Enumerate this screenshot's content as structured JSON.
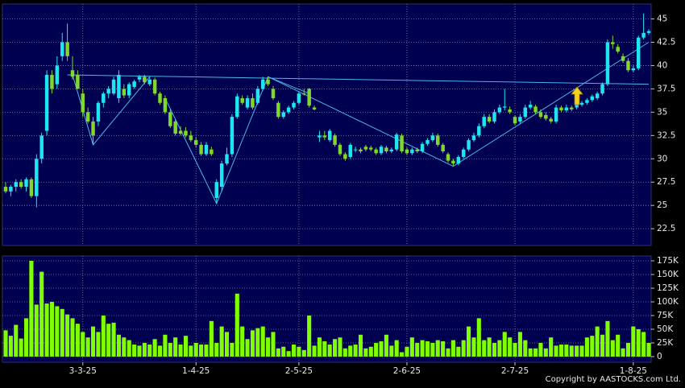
{
  "chart_data": [
    {
      "type": "candlestick",
      "up_color": "#1ee6f0",
      "down_color": "#80d82a",
      "ylim": [
        20.7,
        46.6
      ],
      "yticks": [
        22.5,
        25,
        27.5,
        30,
        32.5,
        35,
        37.5,
        40,
        42.5,
        45
      ],
      "grid": true,
      "trendline_color": "#48b8e8",
      "trendlines": [
        {
          "x": [
            12,
            125
          ],
          "y": [
            39,
            38
          ]
        },
        {
          "x": [
            13,
            17,
            28
          ],
          "y": [
            39,
            31.5,
            38.8
          ]
        },
        {
          "x": [
            31,
            41,
            51,
            59
          ],
          "y": [
            36.5,
            25.2,
            38.8,
            37
          ]
        },
        {
          "x": [
            51,
            87,
            125
          ],
          "y": [
            38.8,
            29.2,
            42.5
          ]
        }
      ],
      "ohlc": [
        [
          27,
          27.5,
          26.3,
          26.5
        ],
        [
          26.5,
          27.2,
          26,
          27
        ],
        [
          27,
          27.8,
          26.5,
          27.5
        ],
        [
          27.5,
          27.8,
          26.8,
          27
        ],
        [
          27,
          28,
          26.5,
          27.8
        ],
        [
          27.8,
          28,
          25.8,
          26
        ],
        [
          26,
          30.5,
          24.8,
          30
        ],
        [
          30,
          32.8,
          29.5,
          32.5
        ],
        [
          33,
          39.5,
          32.5,
          39
        ],
        [
          39,
          39.5,
          37,
          37.5
        ],
        [
          38,
          41,
          37.5,
          40
        ],
        [
          41,
          43.5,
          40.5,
          42.5
        ],
        [
          42.5,
          44.5,
          40.5,
          41
        ],
        [
          39.5,
          41,
          38.5,
          38.8
        ],
        [
          39,
          39.5,
          37.5,
          37.5
        ],
        [
          37,
          37.5,
          34.5,
          35
        ],
        [
          35,
          35.5,
          33.8,
          34
        ],
        [
          34,
          34.5,
          31.5,
          32.5
        ],
        [
          34,
          36.2,
          33.5,
          36
        ],
        [
          36,
          37.2,
          35.5,
          37
        ],
        [
          37,
          37.8,
          36.5,
          37.5
        ],
        [
          37,
          38.8,
          36.8,
          38.5
        ],
        [
          36.5,
          39.5,
          36,
          39
        ],
        [
          37.5,
          38,
          36.5,
          36.8
        ],
        [
          36.8,
          38.2,
          36.5,
          38
        ],
        [
          37.7,
          38.5,
          37.5,
          38.3
        ],
        [
          38.5,
          39,
          38.2,
          38.8
        ],
        [
          38.8,
          39,
          38,
          38.2
        ],
        [
          38,
          38.8,
          37.8,
          38.5
        ],
        [
          38.5,
          38.7,
          36.8,
          37
        ],
        [
          37,
          37.2,
          35.8,
          36
        ],
        [
          36.5,
          36.8,
          34.8,
          35
        ],
        [
          35,
          35.3,
          33.3,
          33.5
        ],
        [
          34,
          34.2,
          32.5,
          32.7
        ],
        [
          33,
          33.5,
          32.5,
          32.7
        ],
        [
          33,
          33.4,
          32.3,
          32.5
        ],
        [
          32.5,
          33,
          31.8,
          32
        ],
        [
          32,
          32.3,
          31.2,
          31.5
        ],
        [
          31.5,
          31.8,
          30.3,
          30.5
        ],
        [
          30.5,
          31.8,
          30.3,
          31.5
        ],
        [
          31,
          31.3,
          30.3,
          30.5
        ],
        [
          25.8,
          27.8,
          25.2,
          27.5
        ],
        [
          27,
          29.8,
          26.5,
          29.5
        ],
        [
          29.5,
          31.2,
          29.3,
          30.5
        ],
        [
          30.5,
          34.8,
          30.2,
          34.5
        ],
        [
          34.5,
          37,
          34.3,
          36.7
        ],
        [
          36.5,
          36.8,
          35.8,
          36
        ],
        [
          35.5,
          36.8,
          35.3,
          36.5
        ],
        [
          36.5,
          37,
          35.3,
          35.5
        ],
        [
          36,
          37.8,
          35.8,
          37.5
        ],
        [
          37.5,
          38.8,
          37.3,
          38.5
        ],
        [
          38.5,
          38.8,
          37.8,
          38
        ],
        [
          37.5,
          37.8,
          36.3,
          36.5
        ],
        [
          36,
          36.2,
          34.3,
          34.5
        ],
        [
          34.5,
          35.2,
          34.3,
          35
        ],
        [
          35,
          35.7,
          34.8,
          35.5
        ],
        [
          35.5,
          36.2,
          35.3,
          36
        ],
        [
          36,
          37.2,
          35.8,
          37
        ],
        [
          37,
          37.5,
          36.8,
          36.9
        ],
        [
          37.5,
          37.6,
          35.5,
          35.7
        ],
        [
          35.5,
          35.7,
          35.2,
          35.3
        ],
        [
          32.3,
          33,
          31.8,
          32.5
        ],
        [
          32.5,
          33,
          32,
          32.3
        ],
        [
          32,
          33.2,
          31.8,
          33
        ],
        [
          32.5,
          32.7,
          31.3,
          31.5
        ],
        [
          31.5,
          31.7,
          30.3,
          30.5
        ],
        [
          30.5,
          30.7,
          29.8,
          30
        ],
        [
          30.2,
          31.7,
          30,
          31.5
        ],
        [
          31,
          31.3,
          30.7,
          31
        ],
        [
          31,
          31.2,
          30.6,
          30.8
        ],
        [
          31.3,
          31.5,
          30.8,
          31
        ],
        [
          31.2,
          31.4,
          30.8,
          31
        ],
        [
          31,
          31.2,
          30.4,
          30.6
        ],
        [
          30.6,
          31.5,
          30.4,
          31.3
        ],
        [
          31.2,
          31.4,
          30.6,
          30.8
        ],
        [
          30.8,
          31.2,
          30.6,
          31
        ],
        [
          31,
          32.8,
          30.8,
          32.6
        ],
        [
          32.5,
          32.7,
          30.6,
          30.8
        ],
        [
          31,
          31.2,
          30.4,
          30.6
        ],
        [
          30.6,
          31.2,
          30.4,
          31
        ],
        [
          31,
          31.2,
          30.6,
          30.8
        ],
        [
          30.8,
          31.8,
          30.6,
          31.6
        ],
        [
          31.6,
          32.2,
          31.4,
          32
        ],
        [
          32,
          32.8,
          31.8,
          32.5
        ],
        [
          32.5,
          32.7,
          31.3,
          31.5
        ],
        [
          31.5,
          31.7,
          30.6,
          30.8
        ],
        [
          30.5,
          30.7,
          29.6,
          29.8
        ],
        [
          29.8,
          30,
          29.2,
          29.5
        ],
        [
          29.5,
          30.4,
          29.3,
          30.2
        ],
        [
          30.2,
          31.2,
          30,
          31
        ],
        [
          31,
          32.2,
          30.8,
          32
        ],
        [
          32,
          32.8,
          31.8,
          32.5
        ],
        [
          32.5,
          33.8,
          32.3,
          33.5
        ],
        [
          33.5,
          34.8,
          33.3,
          34.5
        ],
        [
          34.5,
          34.8,
          33.8,
          34
        ],
        [
          34,
          35.3,
          33.8,
          35
        ],
        [
          35,
          35.8,
          34.8,
          35.5
        ],
        [
          35.5,
          37.5,
          35.2,
          35.6
        ],
        [
          35.3,
          35.6,
          34.8,
          35
        ],
        [
          34.5,
          34.7,
          33.6,
          33.8
        ],
        [
          34,
          34.8,
          33.8,
          34.5
        ],
        [
          34.5,
          35.8,
          34.3,
          35.5
        ],
        [
          35.5,
          36.2,
          35.3,
          35.8
        ],
        [
          35.6,
          35.8,
          34.8,
          35
        ],
        [
          35,
          35.3,
          34.3,
          34.5
        ],
        [
          34.7,
          35,
          34.1,
          34.3
        ],
        [
          34.3,
          34.5,
          33.8,
          34
        ],
        [
          34,
          35.8,
          33.8,
          35.5
        ],
        [
          35.5,
          35.7,
          35,
          35.2
        ],
        [
          35.2,
          35.8,
          35,
          35.5
        ],
        [
          35.5,
          35.7,
          35.1,
          35.3
        ],
        [
          35.5,
          36,
          35.3,
          35.8
        ],
        [
          35.8,
          36.2,
          35.6,
          36
        ],
        [
          36,
          36.5,
          35.8,
          36.3
        ],
        [
          36.3,
          36.9,
          36.1,
          36.7
        ],
        [
          36.5,
          37.2,
          36.3,
          37
        ],
        [
          37,
          38.2,
          36.8,
          38
        ],
        [
          38,
          42.8,
          37.8,
          42.5
        ],
        [
          42.5,
          43.2,
          41.8,
          42.3
        ],
        [
          42,
          42.3,
          41.3,
          41.5
        ],
        [
          41,
          41.3,
          40.3,
          40.5
        ],
        [
          40.5,
          40.8,
          39.3,
          39.5
        ],
        [
          39.5,
          40,
          39.3,
          39.7
        ],
        [
          39.7,
          43.2,
          39.5,
          43
        ],
        [
          43,
          45.6,
          42.8,
          43.5
        ],
        [
          43.5,
          43.9,
          43.3,
          43.7
        ]
      ]
    },
    {
      "type": "bar",
      "color": "#80ff00",
      "ylim": [
        -10300,
        183800
      ],
      "grid": true,
      "yticks": [
        0,
        {
          "value": 25000,
          "label": "25K"
        },
        {
          "value": 50000,
          "label": "50K"
        },
        {
          "value": 75000,
          "label": "75K"
        },
        {
          "value": 100000,
          "label": "100K"
        },
        {
          "value": 125000,
          "label": "125K"
        },
        {
          "value": 150000,
          "label": "150K"
        },
        {
          "value": 175000,
          "label": "175K"
        }
      ],
      "categories": [
        null,
        null,
        null,
        null,
        null,
        null,
        null,
        null,
        null,
        null,
        null,
        null,
        null,
        null,
        null,
        "3-3-25",
        null,
        null,
        null,
        null,
        null,
        null,
        null,
        null,
        null,
        null,
        null,
        null,
        null,
        null,
        null,
        null,
        null,
        null,
        null,
        null,
        null,
        "1-4-25",
        null,
        null,
        null,
        null,
        null,
        null,
        null,
        null,
        null,
        null,
        null,
        null,
        null,
        null,
        null,
        null,
        null,
        null,
        null,
        "2-5-25",
        null,
        null,
        null,
        null,
        null,
        null,
        null,
        null,
        null,
        null,
        null,
        null,
        null,
        null,
        null,
        null,
        null,
        null,
        null,
        null,
        "2-6-25",
        null,
        null,
        null,
        null,
        null,
        null,
        null,
        null,
        null,
        null,
        null,
        null,
        null,
        null,
        null,
        null,
        null,
        null,
        null,
        null,
        "2-7-25",
        null,
        null,
        null,
        null,
        null,
        null,
        null,
        null,
        null,
        null,
        null,
        null,
        null,
        null,
        null,
        null,
        null,
        null,
        null,
        null,
        null,
        null,
        "1-8-25",
        null,
        null,
        null
      ],
      "values": [
        48000,
        38000,
        58000,
        33000,
        70000,
        175000,
        95000,
        155000,
        97000,
        100000,
        92000,
        87000,
        77000,
        70000,
        60000,
        45000,
        35000,
        55000,
        45000,
        75000,
        60000,
        62000,
        40000,
        35000,
        30000,
        22000,
        20000,
        25000,
        22000,
        32000,
        20000,
        40000,
        25000,
        35000,
        22000,
        38000,
        20000,
        25000,
        22000,
        22000,
        65000,
        25000,
        55000,
        45000,
        25000,
        115000,
        55000,
        32000,
        48000,
        52000,
        55000,
        35000,
        45000,
        15000,
        18000,
        10000,
        22000,
        18000,
        12000,
        75000,
        20000,
        35000,
        28000,
        22000,
        32000,
        35000,
        15000,
        20000,
        22000,
        40000,
        15000,
        18000,
        25000,
        28000,
        40000,
        20000,
        30000,
        8000,
        18000,
        35000,
        25000,
        30000,
        28000,
        25000,
        30000,
        28000,
        15000,
        30000,
        18000,
        30000,
        55000,
        35000,
        70000,
        30000,
        35000,
        25000,
        30000,
        45000,
        35000,
        25000,
        45000,
        30000,
        15000,
        15000,
        25000,
        15000,
        35000,
        20000,
        22000,
        22000,
        20000,
        20000,
        20000,
        35000,
        38000,
        55000,
        40000,
        65000,
        30000,
        40000,
        15000,
        25000,
        55000,
        50000,
        45000,
        25000
      ]
    }
  ],
  "footer": "Copyright by AASTOCKS.com Ltd."
}
